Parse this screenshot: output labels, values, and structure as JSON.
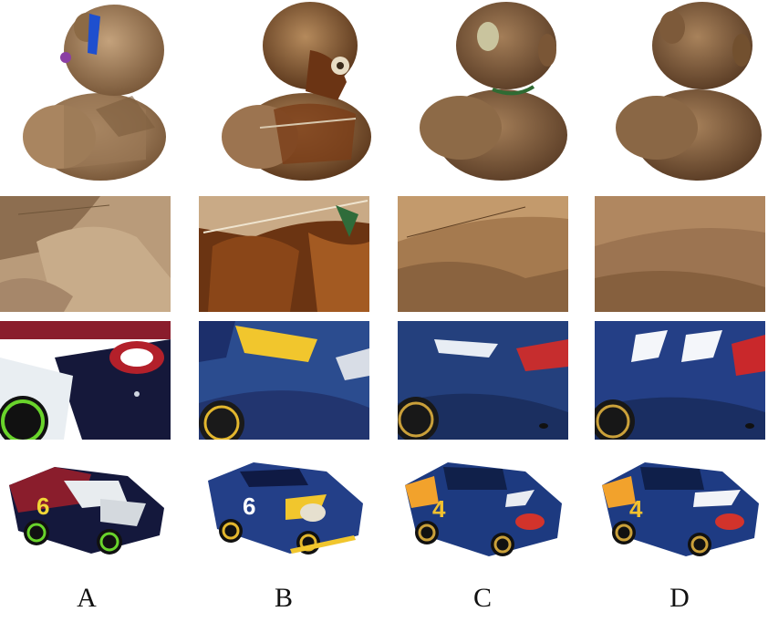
{
  "columns": [
    {
      "label": "A"
    },
    {
      "label": "B"
    },
    {
      "label": "C"
    },
    {
      "label": "D"
    }
  ],
  "rows": [
    {
      "name": "teddy-bear-render"
    },
    {
      "name": "fur-closeup"
    },
    {
      "name": "car-closeup"
    },
    {
      "name": "race-car-render"
    }
  ],
  "car_numbers": {
    "A": "6",
    "B": "6",
    "C": "4",
    "D": "4"
  },
  "colors": {
    "fur_light": "#b08a63",
    "fur_dark": "#6e4a2c",
    "car_blue": "#1f3a7a",
    "car_navy": "#12224d",
    "accent_red": "#d2332b",
    "accent_yellow": "#f2c12e"
  }
}
